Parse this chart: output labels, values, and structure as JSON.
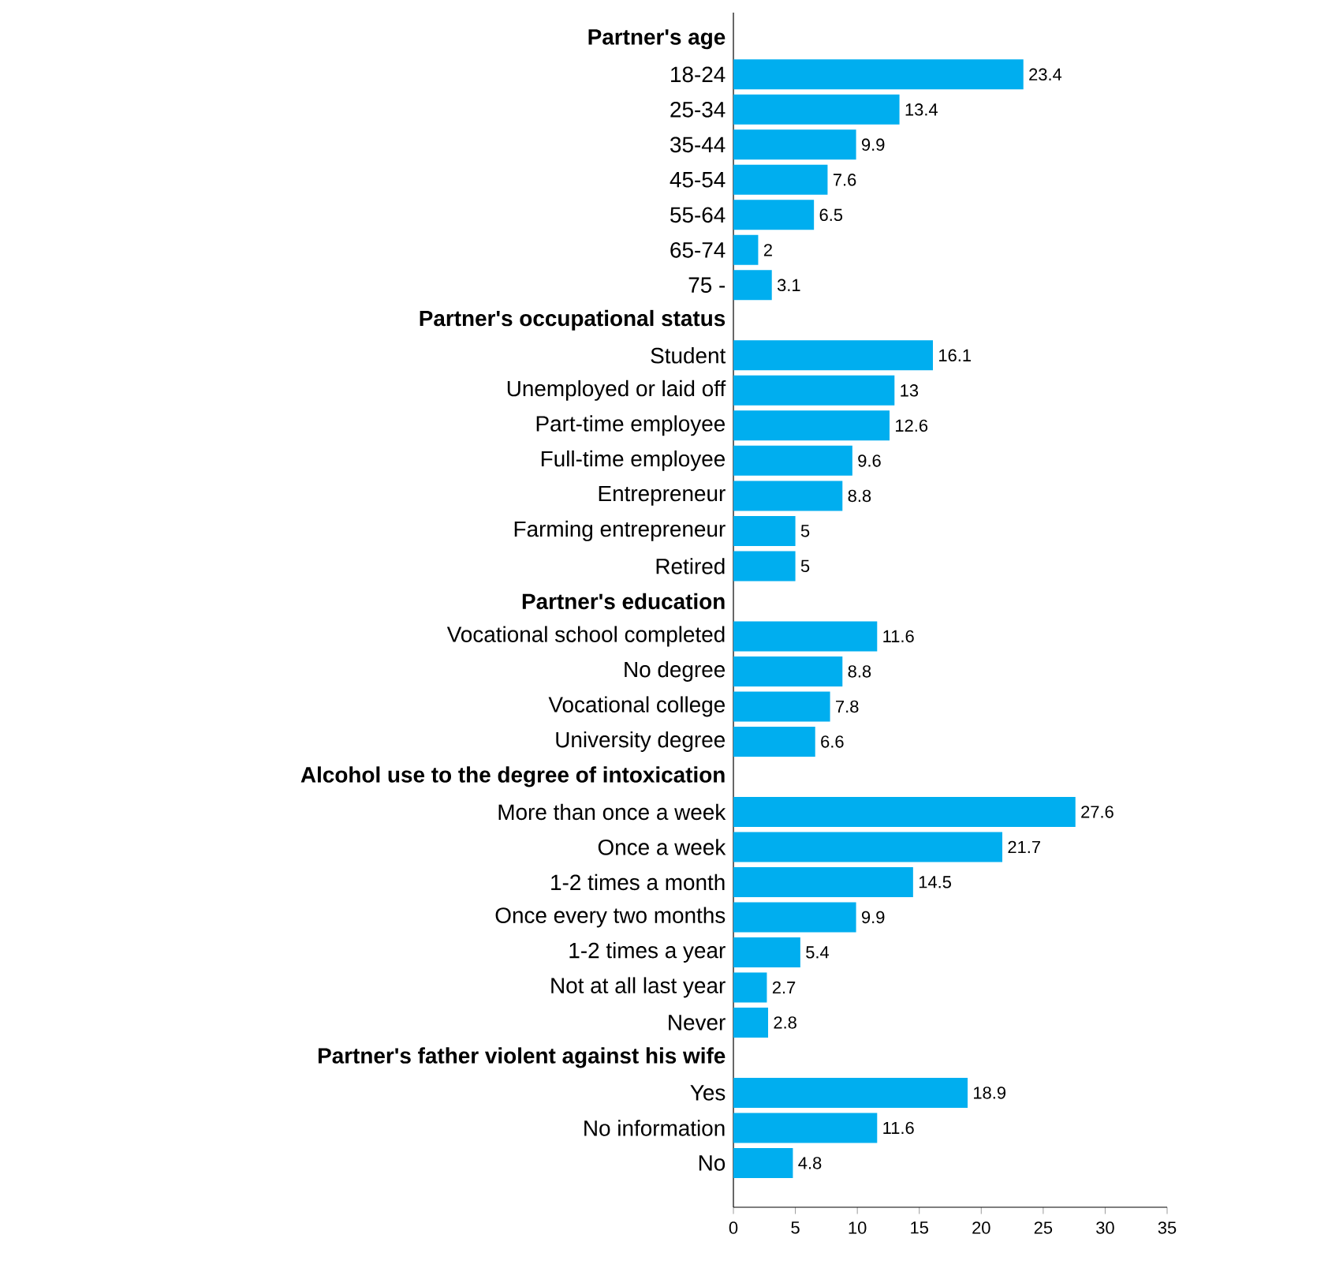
{
  "chart_data": {
    "type": "bar",
    "orientation": "horizontal",
    "color": "#00aeef",
    "data_labels": true,
    "categories": [
      "**Partner's age**",
      "18-24",
      "25-34",
      "35-44",
      "45-54",
      "55-64",
      "65-74",
      "75 -",
      "**Partner's occupational status**",
      "Student",
      "Unemployed or laid off",
      "Part-time employee",
      "Full-time employee",
      "Entrepreneur",
      "Farming entrepreneur",
      "Retired",
      "**Partner's education**",
      "Vocational school completed",
      "No degree",
      "Vocational college",
      "University degree",
      "**Alcohol use to the degree of intoxication**",
      "More than once a week",
      "Once a week",
      "1-2 times a month",
      "Once every two months",
      "1-2 times a year",
      "Not at all last year",
      "Never",
      "**Partner's father violent against his wife**",
      "Yes",
      "No information",
      "No"
    ],
    "values": [
      null,
      23.4,
      13.4,
      9.9,
      7.6,
      6.5,
      2,
      3.1,
      null,
      16.1,
      13,
      12.6,
      9.6,
      8.8,
      5,
      5,
      null,
      11.6,
      8.8,
      7.8,
      6.6,
      null,
      27.6,
      21.7,
      14.5,
      9.9,
      5.4,
      2.7,
      2.8,
      null,
      18.9,
      11.6,
      4.8
    ],
    "xlim": [
      0,
      35
    ],
    "xticks": [
      0,
      5,
      10,
      15,
      20,
      25,
      30,
      35
    ]
  }
}
